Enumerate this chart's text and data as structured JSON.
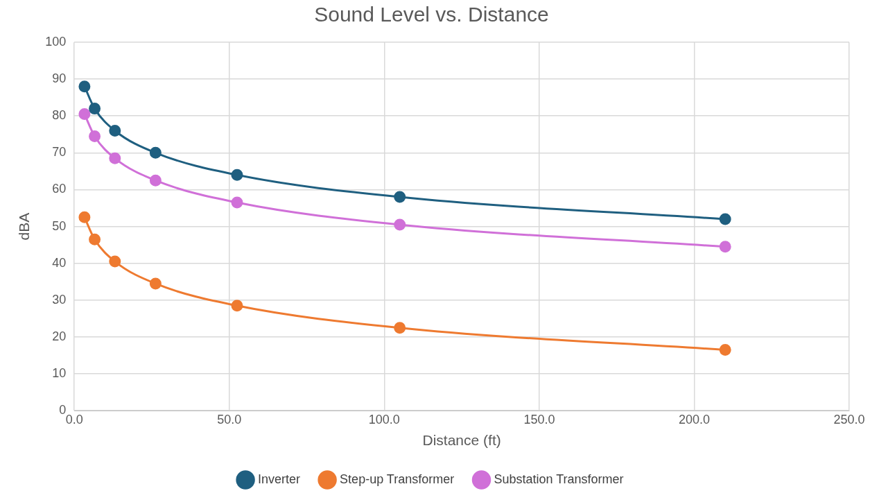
{
  "chart_data": {
    "type": "line",
    "title": "Sound Level vs. Distance",
    "xlabel": "Distance (ft)",
    "ylabel": "dBA",
    "x": [
      3.28,
      6.56,
      13.1,
      26.2,
      52.5,
      105,
      210
    ],
    "series": [
      {
        "name": "Inverter",
        "color": "#1f5f80",
        "values": [
          88,
          82,
          76,
          70,
          64,
          58,
          52
        ]
      },
      {
        "name": "Step-up Transformer",
        "color": "#ee7a30",
        "values": [
          52.5,
          46.5,
          40.5,
          34.5,
          28.5,
          22.5,
          16.5
        ]
      },
      {
        "name": "Substation Transformer",
        "color": "#d070d8",
        "values": [
          80.5,
          74.5,
          68.5,
          62.5,
          56.5,
          50.5,
          44.5
        ]
      }
    ],
    "xlim": [
      0,
      250
    ],
    "xticks": [
      {
        "value": 0,
        "label": "0.0"
      },
      {
        "value": 50,
        "label": "50.0"
      },
      {
        "value": 100,
        "label": "100.0"
      },
      {
        "value": 150,
        "label": "150.0"
      },
      {
        "value": 200,
        "label": "200.0"
      },
      {
        "value": 250,
        "label": "250.0"
      }
    ],
    "ylim": [
      0,
      100
    ],
    "yticks": [
      0,
      10,
      20,
      30,
      40,
      50,
      60,
      70,
      80,
      90,
      100
    ],
    "grid": true,
    "legend": "bottom",
    "marker": "circle",
    "line_style": "solid"
  }
}
